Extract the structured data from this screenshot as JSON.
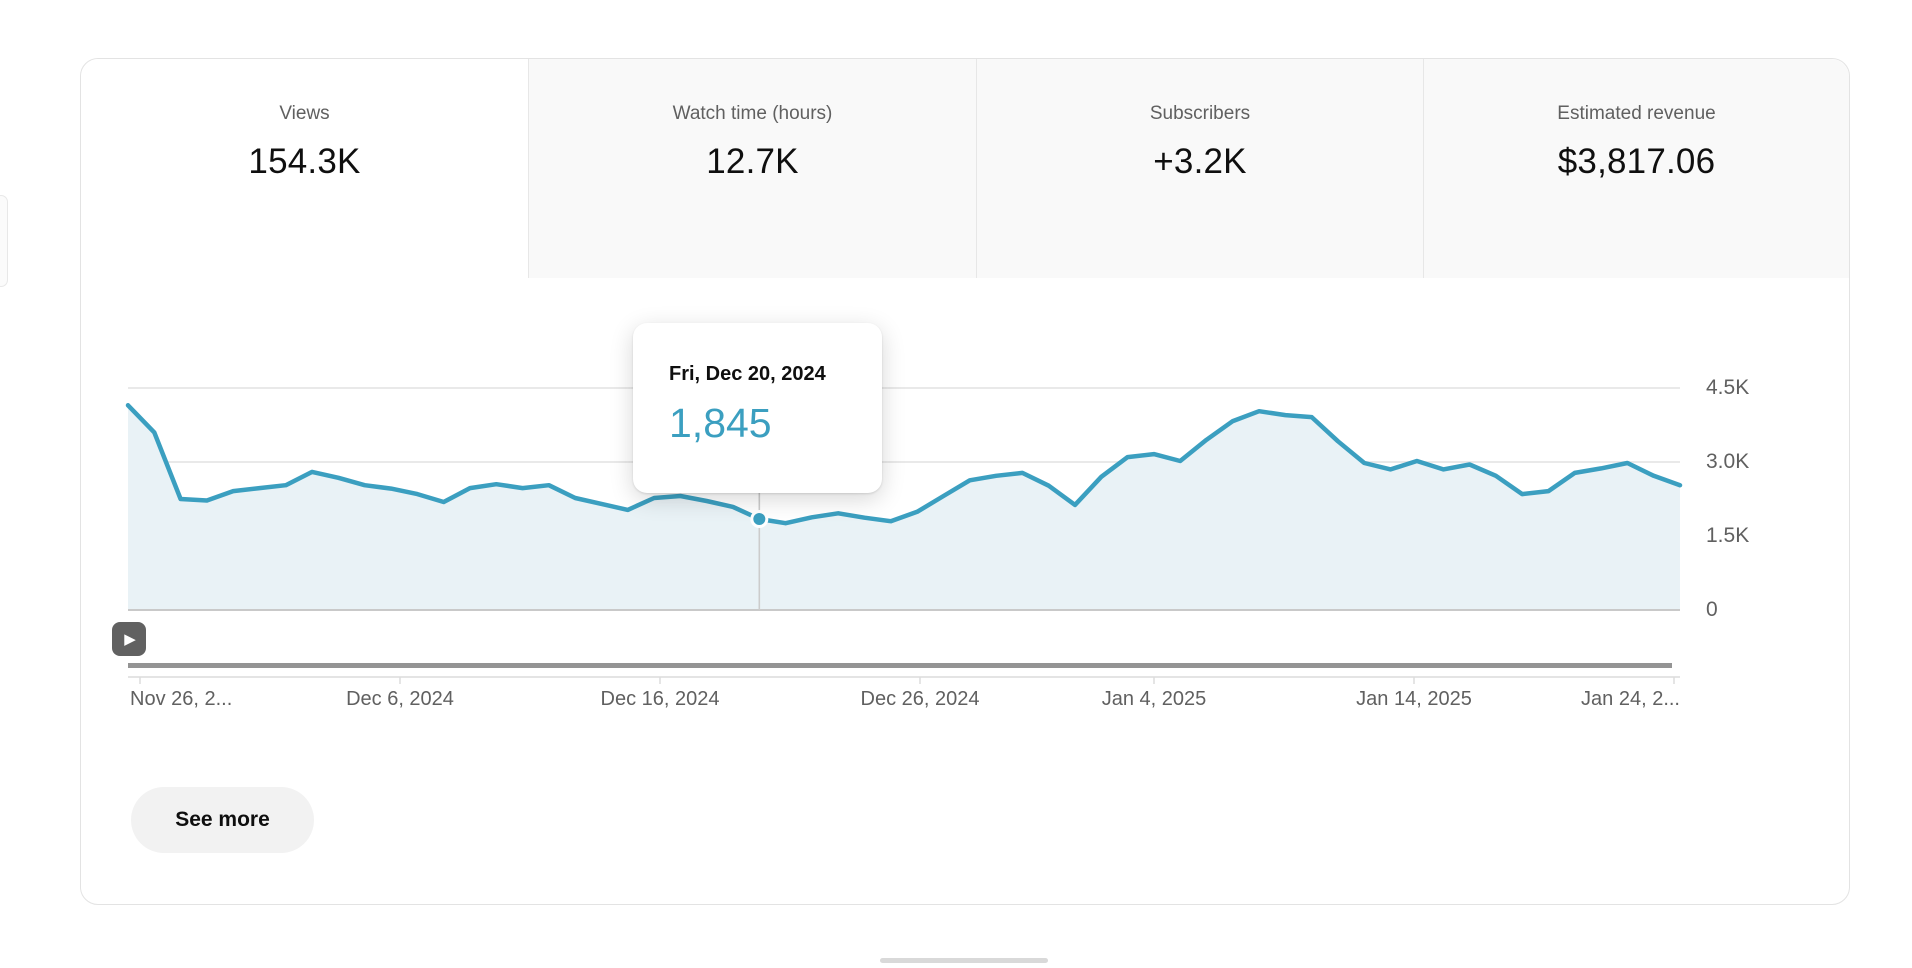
{
  "card": {
    "metric_tabs": [
      {
        "label": "Views",
        "value": "154.3K",
        "active": true
      },
      {
        "label": "Watch time (hours)",
        "value": "12.7K",
        "active": false
      },
      {
        "label": "Subscribers",
        "value": "+3.2K",
        "active": false
      },
      {
        "label": "Estimated revenue",
        "value": "$3,817.06",
        "active": false
      }
    ],
    "see_more_label": "See more"
  },
  "tooltip": {
    "date": "Fri, Dec 20, 2024",
    "value": "1,845"
  },
  "chart_data": {
    "type": "line",
    "title": "",
    "series": [
      {
        "name": "Views",
        "values": [
          4150,
          3600,
          2250,
          2220,
          2410,
          2470,
          2530,
          2800,
          2680,
          2530,
          2460,
          2350,
          2190,
          2470,
          2550,
          2470,
          2530,
          2270,
          2150,
          2030,
          2270,
          2310,
          2210,
          2090,
          1845,
          1760,
          1880,
          1960,
          1870,
          1800,
          1990,
          2310,
          2630,
          2720,
          2780,
          2520,
          2130,
          2700,
          3100,
          3160,
          3020,
          3450,
          3830,
          4030,
          3950,
          3910,
          3420,
          2980,
          2850,
          3020,
          2850,
          2950,
          2720,
          2350,
          2410,
          2780,
          2870,
          2980,
          2720,
          2530
        ]
      }
    ],
    "x_ticks": [
      {
        "label": "Nov 26, 2...",
        "day_offset": 0
      },
      {
        "label": "Dec 6, 2024",
        "day_offset": 10
      },
      {
        "label": "Dec 16, 2024",
        "day_offset": 20
      },
      {
        "label": "Dec 26, 2024",
        "day_offset": 30
      },
      {
        "label": "Jan 4, 2025",
        "day_offset": 39
      },
      {
        "label": "Jan 14, 2025",
        "day_offset": 49
      },
      {
        "label": "Jan 24, 2...",
        "day_offset": 59
      }
    ],
    "y_ticks": [
      {
        "label": "0",
        "value": 0
      },
      {
        "label": "1.5K",
        "value": 1500
      },
      {
        "label": "3.0K",
        "value": 3000
      },
      {
        "label": "4.5K",
        "value": 4500
      }
    ],
    "ylim": [
      0,
      4500
    ],
    "grid": true,
    "legend": "none",
    "highlight": {
      "index": 24,
      "date": "Fri, Dec 20, 2024",
      "value": 1845
    },
    "colors": {
      "line": "#3b9fc0",
      "fill": "#e9f2f6",
      "grid": "#e9e9e9",
      "baseline": "#c9c9c9",
      "axis": "#dcdcdc",
      "scrollbar": "#949494",
      "hover_line": "#cccccc",
      "value_text": "#3b9fc0"
    }
  },
  "icons": {
    "play": "▶"
  }
}
